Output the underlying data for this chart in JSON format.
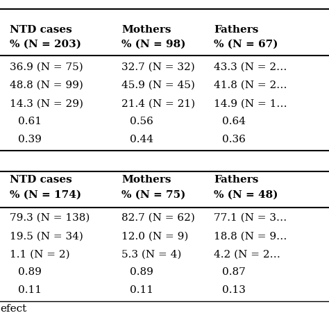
{
  "background_color": "#ffffff",
  "table1_headers": [
    "NTD cases\n% (N = 203)",
    "Mothers\n% (N = 98)",
    "Fathers\n% (N = 67)"
  ],
  "table1_rows": [
    [
      "36.9 (N = 75)",
      "32.7 (N = 32)",
      "43.3 (N = 2…"
    ],
    [
      "48.8 (N = 99)",
      "45.9 (N = 45)",
      "41.8 (N = 2…"
    ],
    [
      "14.3 (N = 29)",
      "21.4 (N = 21)",
      "14.9 (N = 1…"
    ],
    [
      "0.61",
      "0.56",
      "0.64"
    ],
    [
      "0.39",
      "0.44",
      "0.36"
    ]
  ],
  "table2_headers": [
    "NTD cases\n% (N = 174)",
    "Mothers\n% (N = 75)",
    "Fathers\n% (N = 48)"
  ],
  "table2_rows": [
    [
      "79.3 (N = 138)",
      "82.7 (N = 62)",
      "77.1 (N = 3…"
    ],
    [
      "19.5 (N = 34)",
      "12.0 (N = 9)",
      "18.8 (N = 9…"
    ],
    [
      "1.1 (N = 2)",
      "5.3 (N = 4)",
      "4.2 (N = 2…"
    ],
    [
      "0.89",
      "0.89",
      "0.87"
    ],
    [
      "0.11",
      "0.11",
      "0.13"
    ]
  ],
  "footer": "efect",
  "text_color": "#000000",
  "line_color": "#000000",
  "font_size": 11
}
